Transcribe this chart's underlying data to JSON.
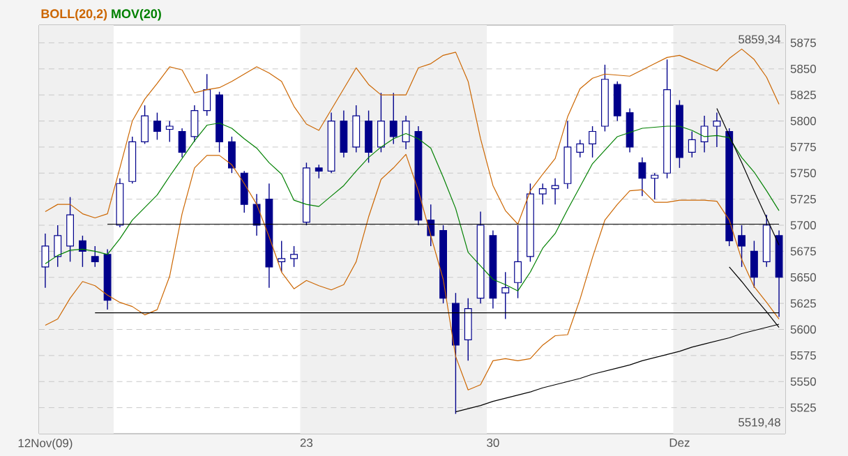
{
  "chart_data": {
    "type": "candlestick",
    "color": "#00008b",
    "categories": [
      "12Nov(09)",
      null,
      null,
      null,
      null,
      null,
      null,
      null,
      null,
      null,
      null,
      null,
      null,
      null,
      null,
      null,
      null,
      null,
      null,
      null,
      null,
      "23",
      null,
      null,
      null,
      null,
      null,
      null,
      null,
      null,
      null,
      null,
      null,
      null,
      null,
      null,
      "30",
      null,
      null,
      null,
      null,
      null,
      null,
      null,
      null,
      null,
      null,
      null,
      null,
      null,
      null,
      "Dez",
      null,
      null,
      null,
      null,
      null,
      null,
      null,
      null
    ],
    "ohlc": [
      [
        5660,
        5692,
        5640,
        5680
      ],
      [
        5670,
        5700,
        5660,
        5690
      ],
      [
        5680,
        5727,
        5665,
        5710
      ],
      [
        5685,
        5690,
        5660,
        5675
      ],
      [
        5670,
        5680,
        5660,
        5665
      ],
      [
        5672,
        5677,
        5619,
        5628
      ],
      [
        5700,
        5745,
        5698,
        5740
      ],
      [
        5742,
        5785,
        5740,
        5780
      ],
      [
        5780,
        5815,
        5778,
        5805
      ],
      [
        5800,
        5808,
        5782,
        5790
      ],
      [
        5792,
        5800,
        5780,
        5795
      ],
      [
        5790,
        5793,
        5765,
        5770
      ],
      [
        5785,
        5815,
        5780,
        5810
      ],
      [
        5810,
        5845,
        5805,
        5830
      ],
      [
        5825,
        5828,
        5770,
        5780
      ],
      [
        5780,
        5785,
        5750,
        5755
      ],
      [
        5750,
        5752,
        5712,
        5720
      ],
      [
        5720,
        5730,
        5690,
        5700
      ],
      [
        5725,
        5740,
        5640,
        5660
      ],
      [
        5665,
        5685,
        5655,
        5668
      ],
      [
        5668,
        5680,
        5660,
        5672
      ],
      [
        5703,
        5760,
        5700,
        5755
      ],
      [
        5755,
        5758,
        5745,
        5752
      ],
      [
        5752,
        5808,
        5750,
        5800
      ],
      [
        5800,
        5810,
        5765,
        5770
      ],
      [
        5775,
        5815,
        5770,
        5805
      ],
      [
        5800,
        5810,
        5760,
        5770
      ],
      [
        5775,
        5827,
        5770,
        5800
      ],
      [
        5800,
        5827,
        5778,
        5785
      ],
      [
        5780,
        5805,
        5773,
        5800
      ],
      [
        5790,
        5795,
        5700,
        5705
      ],
      [
        5705,
        5720,
        5680,
        5690
      ],
      [
        5695,
        5700,
        5625,
        5630
      ],
      [
        5625,
        5635,
        5519,
        5585
      ],
      [
        5590,
        5630,
        5570,
        5620
      ],
      [
        5630,
        5713,
        5625,
        5700
      ],
      [
        5690,
        5695,
        5620,
        5630
      ],
      [
        5635,
        5655,
        5610,
        5640
      ],
      [
        5645,
        5700,
        5630,
        5665
      ],
      [
        5670,
        5740,
        5665,
        5730
      ],
      [
        5730,
        5740,
        5720,
        5735
      ],
      [
        5735,
        5745,
        5720,
        5738
      ],
      [
        5740,
        5800,
        5735,
        5775
      ],
      [
        5770,
        5782,
        5765,
        5778
      ],
      [
        5778,
        5795,
        5765,
        5790
      ],
      [
        5795,
        5854,
        5790,
        5840
      ],
      [
        5835,
        5838,
        5800,
        5805
      ],
      [
        5808,
        5812,
        5770,
        5775
      ],
      [
        5760,
        5765,
        5728,
        5745
      ],
      [
        5745,
        5750,
        5725,
        5748
      ],
      [
        5750,
        5859,
        5745,
        5830
      ],
      [
        5815,
        5820,
        5755,
        5765
      ],
      [
        5770,
        5790,
        5765,
        5782
      ],
      [
        5780,
        5805,
        5770,
        5795
      ],
      [
        5795,
        5808,
        5775,
        5800
      ],
      [
        5790,
        5793,
        5680,
        5685
      ],
      [
        5690,
        5700,
        5660,
        5680
      ],
      [
        5675,
        5685,
        5640,
        5650
      ],
      [
        5665,
        5710,
        5660,
        5700
      ],
      [
        5690,
        5695,
        5612,
        5650
      ]
    ],
    "series": [
      {
        "type": "line",
        "name": "BOLL(20,2)",
        "color": "#cc6600",
        "values": [
          5713,
          5720,
          5720,
          5711,
          5707,
          5711,
          5755,
          5800,
          5821,
          5836,
          5852,
          5849,
          5827,
          5830,
          5832,
          5838,
          5845,
          5852,
          5846,
          5838,
          5814,
          5797,
          5791,
          5811,
          5831,
          5851,
          5835,
          5825,
          5825,
          5825,
          5851,
          5855,
          5863,
          5866,
          5838,
          5783,
          5738,
          5714,
          5701,
          5733,
          5749,
          5764,
          5804,
          5831,
          5841,
          5845,
          5844,
          5843,
          5849,
          5855,
          5861,
          5863,
          5858,
          5853,
          5848,
          5860,
          5869,
          5859,
          5842,
          5816
        ]
      },
      {
        "type": "line",
        "color": "#cc6600",
        "values": [
          5604,
          5610,
          5630,
          5646,
          5642,
          5633,
          5626,
          5622,
          5614,
          5619,
          5651,
          5711,
          5755,
          5767,
          5767,
          5758,
          5740,
          5720,
          5689,
          5655,
          5639,
          5647,
          5642,
          5638,
          5643,
          5665,
          5708,
          5744,
          5755,
          5768,
          5733,
          5690,
          5648,
          5574,
          5542,
          5547,
          5570,
          5572,
          5570,
          5572,
          5585,
          5594,
          5595,
          5629,
          5669,
          5705,
          5720,
          5733,
          5734,
          5722,
          5722,
          5724,
          5724,
          5724,
          5723,
          5705,
          5667,
          5641,
          5626,
          5610
        ]
      },
      {
        "type": "line",
        "name": "MOV(20)",
        "color": "#008000",
        "values": [
          5663,
          5671,
          5676,
          5677,
          5675,
          5672,
          5687,
          5705,
          5717,
          5729,
          5747,
          5764,
          5781,
          5796,
          5798,
          5793,
          5783,
          5774,
          5760,
          5749,
          5724,
          5720,
          5718,
          5728,
          5738,
          5752,
          5765,
          5775,
          5783,
          5788,
          5783,
          5774,
          5746,
          5716,
          5674,
          5661,
          5648,
          5643,
          5637,
          5655,
          5678,
          5692,
          5715,
          5737,
          5759,
          5772,
          5785,
          5789,
          5793,
          5794,
          5795,
          5795,
          5791,
          5785,
          5786,
          5784,
          5765,
          5751,
          5733,
          5714
        ]
      },
      {
        "type": "line",
        "color": "#000000",
        "values": [
          null,
          null,
          null,
          null,
          null,
          5701,
          5701,
          5701,
          5701,
          5701,
          5701,
          5701,
          5701,
          5701,
          5701,
          5701,
          5701,
          5701,
          5701,
          5701,
          5701,
          5701,
          5701,
          5701,
          5701,
          5701,
          5701,
          5701,
          5701,
          5701,
          5701,
          5701,
          5701,
          5701,
          5701,
          5701,
          5701,
          5701,
          5701,
          5701,
          5701,
          5701,
          5701,
          5701,
          5701,
          5701,
          5701,
          5701,
          5701,
          5701,
          5701,
          5701,
          5701,
          5701,
          5701,
          5701,
          5701,
          5701,
          5701,
          5701
        ]
      },
      {
        "type": "line",
        "color": "#000000",
        "values": [
          null,
          null,
          null,
          null,
          5616,
          5616,
          5616,
          5616,
          5616,
          5616,
          5616,
          5616,
          5616,
          5616,
          5616,
          5616,
          5616,
          5616,
          5616,
          5616,
          5616,
          5616,
          5616,
          5616,
          5616,
          5616,
          5616,
          5616,
          5616,
          5616,
          5616,
          5616,
          5616,
          5616,
          5616,
          5616,
          5616,
          5616,
          5616,
          5616,
          5616,
          5616,
          5616,
          5616,
          5616,
          5616,
          5616,
          5616,
          5616,
          5616,
          5616,
          5616,
          5616,
          5616,
          5616,
          5616,
          5616,
          5616,
          5616,
          5616
        ]
      },
      {
        "type": "line",
        "color": "#000000",
        "values": [
          null,
          null,
          null,
          null,
          null,
          null,
          null,
          null,
          null,
          null,
          null,
          null,
          null,
          null,
          null,
          null,
          null,
          null,
          null,
          null,
          null,
          null,
          null,
          null,
          null,
          null,
          null,
          null,
          null,
          null,
          null,
          null,
          null,
          5521,
          5524,
          5527,
          5531,
          5534,
          5537,
          5540,
          5544,
          5547,
          5550,
          5553,
          5557,
          5560,
          5563,
          5566,
          5570,
          5573,
          5576,
          5579,
          5583,
          5586,
          5589,
          5592,
          5596,
          5599,
          5602,
          5605
        ]
      },
      {
        "type": "line",
        "color": "#000000",
        "values": [
          null,
          null,
          null,
          null,
          null,
          null,
          null,
          null,
          null,
          null,
          null,
          null,
          null,
          null,
          null,
          null,
          null,
          null,
          null,
          null,
          null,
          null,
          null,
          null,
          null,
          null,
          null,
          null,
          null,
          null,
          null,
          null,
          null,
          null,
          null,
          null,
          null,
          null,
          null,
          null,
          null,
          null,
          null,
          null,
          null,
          null,
          null,
          null,
          null,
          null,
          null,
          null,
          null,
          null,
          5812,
          5786,
          5760,
          5733,
          5707,
          5681
        ]
      },
      {
        "type": "line",
        "color": "#000000",
        "values": [
          null,
          null,
          null,
          null,
          null,
          null,
          null,
          null,
          null,
          null,
          null,
          null,
          null,
          null,
          null,
          null,
          null,
          null,
          null,
          null,
          null,
          null,
          null,
          null,
          null,
          null,
          null,
          null,
          null,
          null,
          null,
          null,
          null,
          null,
          null,
          null,
          null,
          null,
          null,
          null,
          null,
          null,
          null,
          null,
          null,
          null,
          null,
          null,
          null,
          null,
          null,
          null,
          null,
          null,
          null,
          5660,
          5646,
          5631,
          5617,
          5602
        ]
      }
    ],
    "ylim": [
      5500,
      5892
    ],
    "yticks": [
      5525,
      5550,
      5575,
      5600,
      5625,
      5650,
      5675,
      5700,
      5725,
      5750,
      5775,
      5800,
      5825,
      5850,
      5875
    ],
    "grid": "y",
    "legend": "top left",
    "annotations": [
      "5859,34",
      "5519,48"
    ]
  }
}
